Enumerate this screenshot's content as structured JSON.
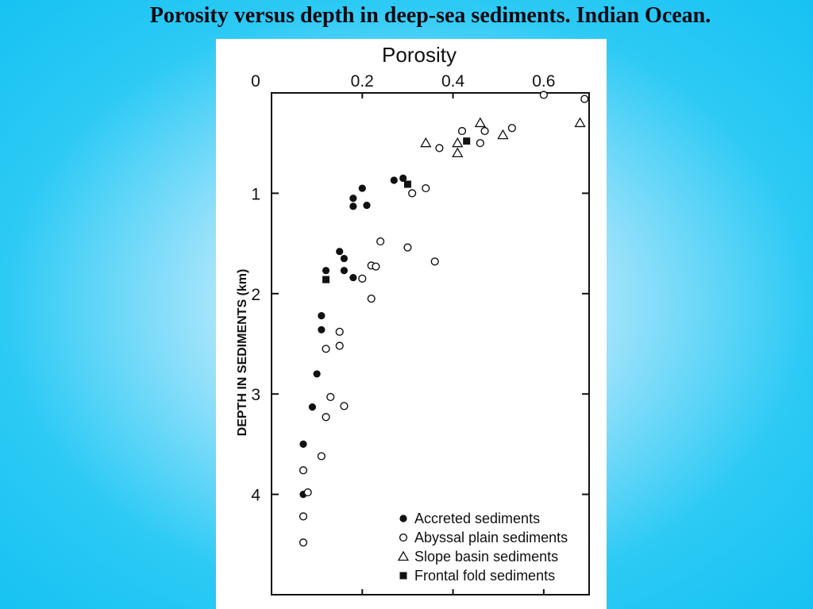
{
  "slide": {
    "title": "Porosity versus depth in deep-sea sediments. Indian Ocean."
  },
  "chart_data": {
    "type": "scatter",
    "title": "",
    "xlabel": "Porosity",
    "ylabel": "DEPTH  IN SEDIMENTS (km)",
    "xlim": [
      0,
      0.7
    ],
    "ylim": [
      0,
      5
    ],
    "x_axis_position": "top",
    "y_axis_inverted": true,
    "x_ticks": [
      "0",
      "0.2",
      "0.4",
      "0.6"
    ],
    "y_ticks": [
      "1",
      "2",
      "3",
      "4"
    ],
    "grid": false,
    "legend_position": "bottom-right",
    "series": [
      {
        "name": "Accreted sediments",
        "marker": "filled-circle",
        "color": "#111111",
        "points": [
          [
            0.2,
            0.95
          ],
          [
            0.18,
            1.05
          ],
          [
            0.21,
            1.12
          ],
          [
            0.18,
            1.13
          ],
          [
            0.15,
            1.58
          ],
          [
            0.16,
            1.65
          ],
          [
            0.16,
            1.77
          ],
          [
            0.18,
            1.84
          ],
          [
            0.12,
            1.77
          ],
          [
            0.11,
            2.22
          ],
          [
            0.11,
            2.36
          ],
          [
            0.1,
            2.8
          ],
          [
            0.09,
            3.13
          ],
          [
            0.07,
            3.5
          ],
          [
            0.07,
            4.0
          ],
          [
            0.27,
            0.87
          ],
          [
            0.29,
            0.85
          ]
        ]
      },
      {
        "name": "Abyssal plain sediments",
        "marker": "open-circle",
        "color": "#111111",
        "points": [
          [
            0.6,
            0.02
          ],
          [
            0.69,
            0.06
          ],
          [
            0.53,
            0.35
          ],
          [
            0.47,
            0.38
          ],
          [
            0.42,
            0.38
          ],
          [
            0.37,
            0.55
          ],
          [
            0.46,
            0.5
          ],
          [
            0.34,
            0.95
          ],
          [
            0.31,
            1.0
          ],
          [
            0.24,
            1.48
          ],
          [
            0.3,
            1.54
          ],
          [
            0.22,
            1.72
          ],
          [
            0.23,
            1.73
          ],
          [
            0.36,
            1.68
          ],
          [
            0.2,
            1.85
          ],
          [
            0.22,
            2.05
          ],
          [
            0.15,
            2.38
          ],
          [
            0.15,
            2.52
          ],
          [
            0.12,
            2.55
          ],
          [
            0.13,
            3.03
          ],
          [
            0.16,
            3.12
          ],
          [
            0.12,
            3.23
          ],
          [
            0.11,
            3.62
          ],
          [
            0.07,
            3.76
          ],
          [
            0.08,
            3.98
          ],
          [
            0.07,
            4.22
          ],
          [
            0.07,
            4.48
          ]
        ]
      },
      {
        "name": "Slope basin sediments",
        "marker": "open-triangle",
        "color": "#111111",
        "points": [
          [
            0.46,
            0.3
          ],
          [
            0.51,
            0.42
          ],
          [
            0.68,
            0.3
          ],
          [
            0.34,
            0.5
          ],
          [
            0.41,
            0.5
          ],
          [
            0.41,
            0.6
          ]
        ]
      },
      {
        "name": "Frontal fold sediments",
        "marker": "filled-square",
        "color": "#111111",
        "points": [
          [
            0.43,
            0.48
          ],
          [
            0.3,
            0.91
          ],
          [
            0.12,
            1.86
          ]
        ]
      }
    ]
  }
}
